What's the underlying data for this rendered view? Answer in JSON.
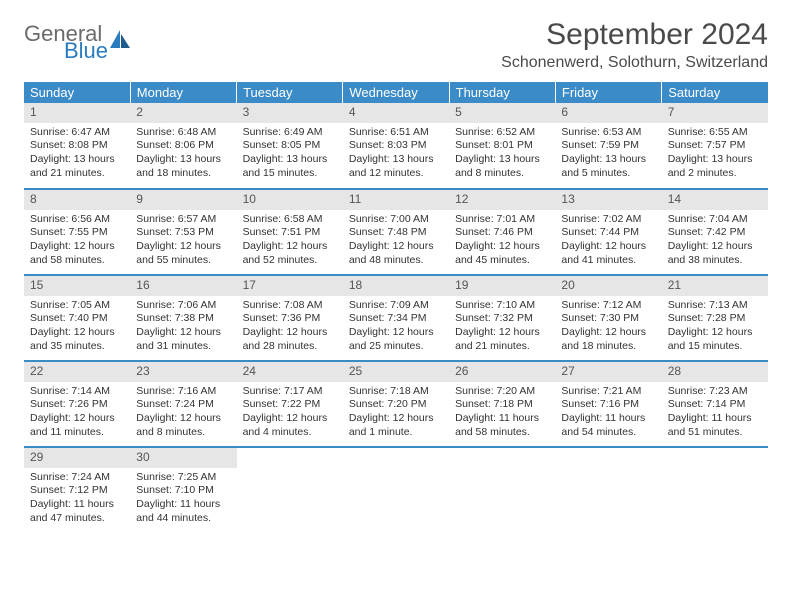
{
  "logo": {
    "text_top": "General",
    "text_bottom": "Blue",
    "icon_color": "#2b7bbf",
    "top_color": "#6b6b6b",
    "bottom_color": "#2b7bbf"
  },
  "header": {
    "month_title": "September 2024",
    "location": "Schonenwerd, Solothurn, Switzerland"
  },
  "colors": {
    "header_bg": "#3b8bc8",
    "header_text": "#ffffff",
    "daynum_bg": "#e6e6e6",
    "divider": "#3b8bc8",
    "body_text": "#333333"
  },
  "day_headers": [
    "Sunday",
    "Monday",
    "Tuesday",
    "Wednesday",
    "Thursday",
    "Friday",
    "Saturday"
  ],
  "weeks": [
    [
      {
        "n": "1",
        "sunrise": "Sunrise: 6:47 AM",
        "sunset": "Sunset: 8:08 PM",
        "daylight": "Daylight: 13 hours and 21 minutes."
      },
      {
        "n": "2",
        "sunrise": "Sunrise: 6:48 AM",
        "sunset": "Sunset: 8:06 PM",
        "daylight": "Daylight: 13 hours and 18 minutes."
      },
      {
        "n": "3",
        "sunrise": "Sunrise: 6:49 AM",
        "sunset": "Sunset: 8:05 PM",
        "daylight": "Daylight: 13 hours and 15 minutes."
      },
      {
        "n": "4",
        "sunrise": "Sunrise: 6:51 AM",
        "sunset": "Sunset: 8:03 PM",
        "daylight": "Daylight: 13 hours and 12 minutes."
      },
      {
        "n": "5",
        "sunrise": "Sunrise: 6:52 AM",
        "sunset": "Sunset: 8:01 PM",
        "daylight": "Daylight: 13 hours and 8 minutes."
      },
      {
        "n": "6",
        "sunrise": "Sunrise: 6:53 AM",
        "sunset": "Sunset: 7:59 PM",
        "daylight": "Daylight: 13 hours and 5 minutes."
      },
      {
        "n": "7",
        "sunrise": "Sunrise: 6:55 AM",
        "sunset": "Sunset: 7:57 PM",
        "daylight": "Daylight: 13 hours and 2 minutes."
      }
    ],
    [
      {
        "n": "8",
        "sunrise": "Sunrise: 6:56 AM",
        "sunset": "Sunset: 7:55 PM",
        "daylight": "Daylight: 12 hours and 58 minutes."
      },
      {
        "n": "9",
        "sunrise": "Sunrise: 6:57 AM",
        "sunset": "Sunset: 7:53 PM",
        "daylight": "Daylight: 12 hours and 55 minutes."
      },
      {
        "n": "10",
        "sunrise": "Sunrise: 6:58 AM",
        "sunset": "Sunset: 7:51 PM",
        "daylight": "Daylight: 12 hours and 52 minutes."
      },
      {
        "n": "11",
        "sunrise": "Sunrise: 7:00 AM",
        "sunset": "Sunset: 7:48 PM",
        "daylight": "Daylight: 12 hours and 48 minutes."
      },
      {
        "n": "12",
        "sunrise": "Sunrise: 7:01 AM",
        "sunset": "Sunset: 7:46 PM",
        "daylight": "Daylight: 12 hours and 45 minutes."
      },
      {
        "n": "13",
        "sunrise": "Sunrise: 7:02 AM",
        "sunset": "Sunset: 7:44 PM",
        "daylight": "Daylight: 12 hours and 41 minutes."
      },
      {
        "n": "14",
        "sunrise": "Sunrise: 7:04 AM",
        "sunset": "Sunset: 7:42 PM",
        "daylight": "Daylight: 12 hours and 38 minutes."
      }
    ],
    [
      {
        "n": "15",
        "sunrise": "Sunrise: 7:05 AM",
        "sunset": "Sunset: 7:40 PM",
        "daylight": "Daylight: 12 hours and 35 minutes."
      },
      {
        "n": "16",
        "sunrise": "Sunrise: 7:06 AM",
        "sunset": "Sunset: 7:38 PM",
        "daylight": "Daylight: 12 hours and 31 minutes."
      },
      {
        "n": "17",
        "sunrise": "Sunrise: 7:08 AM",
        "sunset": "Sunset: 7:36 PM",
        "daylight": "Daylight: 12 hours and 28 minutes."
      },
      {
        "n": "18",
        "sunrise": "Sunrise: 7:09 AM",
        "sunset": "Sunset: 7:34 PM",
        "daylight": "Daylight: 12 hours and 25 minutes."
      },
      {
        "n": "19",
        "sunrise": "Sunrise: 7:10 AM",
        "sunset": "Sunset: 7:32 PM",
        "daylight": "Daylight: 12 hours and 21 minutes."
      },
      {
        "n": "20",
        "sunrise": "Sunrise: 7:12 AM",
        "sunset": "Sunset: 7:30 PM",
        "daylight": "Daylight: 12 hours and 18 minutes."
      },
      {
        "n": "21",
        "sunrise": "Sunrise: 7:13 AM",
        "sunset": "Sunset: 7:28 PM",
        "daylight": "Daylight: 12 hours and 15 minutes."
      }
    ],
    [
      {
        "n": "22",
        "sunrise": "Sunrise: 7:14 AM",
        "sunset": "Sunset: 7:26 PM",
        "daylight": "Daylight: 12 hours and 11 minutes."
      },
      {
        "n": "23",
        "sunrise": "Sunrise: 7:16 AM",
        "sunset": "Sunset: 7:24 PM",
        "daylight": "Daylight: 12 hours and 8 minutes."
      },
      {
        "n": "24",
        "sunrise": "Sunrise: 7:17 AM",
        "sunset": "Sunset: 7:22 PM",
        "daylight": "Daylight: 12 hours and 4 minutes."
      },
      {
        "n": "25",
        "sunrise": "Sunrise: 7:18 AM",
        "sunset": "Sunset: 7:20 PM",
        "daylight": "Daylight: 12 hours and 1 minute."
      },
      {
        "n": "26",
        "sunrise": "Sunrise: 7:20 AM",
        "sunset": "Sunset: 7:18 PM",
        "daylight": "Daylight: 11 hours and 58 minutes."
      },
      {
        "n": "27",
        "sunrise": "Sunrise: 7:21 AM",
        "sunset": "Sunset: 7:16 PM",
        "daylight": "Daylight: 11 hours and 54 minutes."
      },
      {
        "n": "28",
        "sunrise": "Sunrise: 7:23 AM",
        "sunset": "Sunset: 7:14 PM",
        "daylight": "Daylight: 11 hours and 51 minutes."
      }
    ],
    [
      {
        "n": "29",
        "sunrise": "Sunrise: 7:24 AM",
        "sunset": "Sunset: 7:12 PM",
        "daylight": "Daylight: 11 hours and 47 minutes."
      },
      {
        "n": "30",
        "sunrise": "Sunrise: 7:25 AM",
        "sunset": "Sunset: 7:10 PM",
        "daylight": "Daylight: 11 hours and 44 minutes."
      },
      {
        "empty": true
      },
      {
        "empty": true
      },
      {
        "empty": true
      },
      {
        "empty": true
      },
      {
        "empty": true
      }
    ]
  ]
}
